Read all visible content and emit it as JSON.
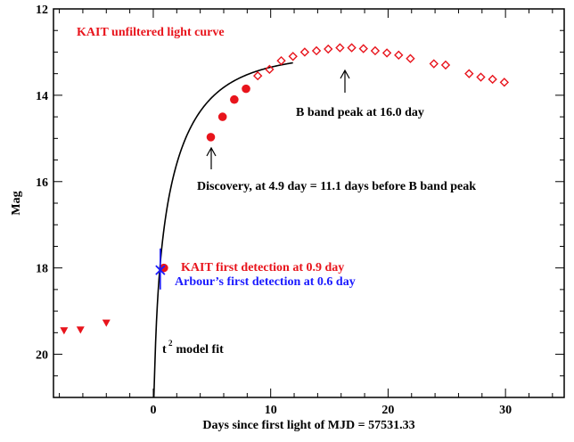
{
  "chart_data": {
    "type": "scatter",
    "title": "",
    "xlabel": "Days since first light of MJD = 57531.33",
    "ylabel": "Mag",
    "xlim": [
      -8.5,
      35
    ],
    "ylim": [
      21,
      12
    ],
    "y_inverted": true,
    "x_ticks": [
      0,
      10,
      20,
      30
    ],
    "y_ticks": [
      12,
      14,
      16,
      18,
      20
    ],
    "series": [
      {
        "name": "KAIT unfiltered light curve",
        "marker": "filled-circle",
        "color": "#e8141c",
        "points": [
          [
            0.9,
            18.0
          ],
          [
            4.9,
            14.97
          ],
          [
            5.9,
            14.5
          ],
          [
            6.9,
            14.1
          ],
          [
            7.9,
            13.85
          ]
        ]
      },
      {
        "marker": "open-diamond",
        "color": "#e8141c",
        "points": [
          [
            8.9,
            13.55
          ],
          [
            9.9,
            13.4
          ],
          [
            10.9,
            13.2
          ],
          [
            11.9,
            13.1
          ],
          [
            12.9,
            13.0
          ],
          [
            13.9,
            12.97
          ],
          [
            14.9,
            12.93
          ],
          [
            15.9,
            12.9
          ],
          [
            16.9,
            12.9
          ],
          [
            17.9,
            12.92
          ],
          [
            18.9,
            12.97
          ],
          [
            19.9,
            13.02
          ],
          [
            20.9,
            13.07
          ],
          [
            21.9,
            13.15
          ],
          [
            23.9,
            13.27
          ],
          [
            24.9,
            13.3
          ],
          [
            26.9,
            13.5
          ],
          [
            27.9,
            13.58
          ],
          [
            28.9,
            13.63
          ],
          [
            29.9,
            13.7
          ]
        ]
      },
      {
        "marker": "filled-triangle-down",
        "color": "#e8141c",
        "points": [
          [
            -7.6,
            19.45
          ],
          [
            -6.2,
            19.43
          ],
          [
            -4.0,
            19.27
          ]
        ]
      },
      {
        "marker": "cross",
        "color": "#1a1aff",
        "points": [
          [
            0.6,
            18.05
          ]
        ],
        "y_error": [
          [
            0.6,
            17.55,
            18.5
          ]
        ]
      }
    ],
    "model_fit": {
      "label": "t² model fit",
      "type": "t2",
      "t_start": -0.1,
      "x_range": [
        0.05,
        11.9
      ],
      "peak_mag": 12.95,
      "scale": 6.75
    },
    "annotations": {
      "title_note": "KAIT unfiltered light curve",
      "b_peak": "B band peak at 16.0 day",
      "discovery": "Discovery, at 4.9 day = 11.1 days before B band peak",
      "kait_first": "KAIT first detection at 0.9 day",
      "arbour_first": "Arbour’s first detection at 0.6 day",
      "model_fit_main": "t",
      "model_fit_sup": "2",
      "model_fit_rest": " model fit"
    },
    "grid": false,
    "legend": "none"
  }
}
